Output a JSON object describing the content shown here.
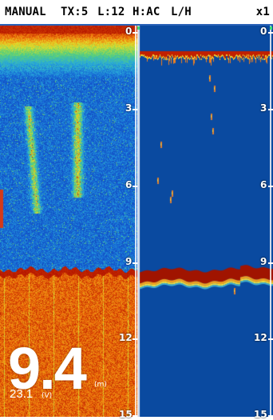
{
  "header": {
    "mode": "MANUAL",
    "tx": "TX:5",
    "level": "L:12",
    "heave": "H:AC",
    "frequency": "L/H",
    "zoom": "x1"
  },
  "depth_scale": {
    "labels": [
      "0",
      "3",
      "6",
      "9",
      "12",
      "15"
    ],
    "values": [
      0,
      3,
      6,
      9,
      12,
      15
    ]
  },
  "readout": {
    "depth": "9.4",
    "depth_unit": "(m)",
    "voltage": "23.1",
    "voltage_unit": "(V)"
  },
  "colors": {
    "water": "#0a4aa0",
    "bottom": "#b01800",
    "accent": "#2a62b8",
    "marker": "#3de07a"
  },
  "bottom_depth_m": 9.4
}
